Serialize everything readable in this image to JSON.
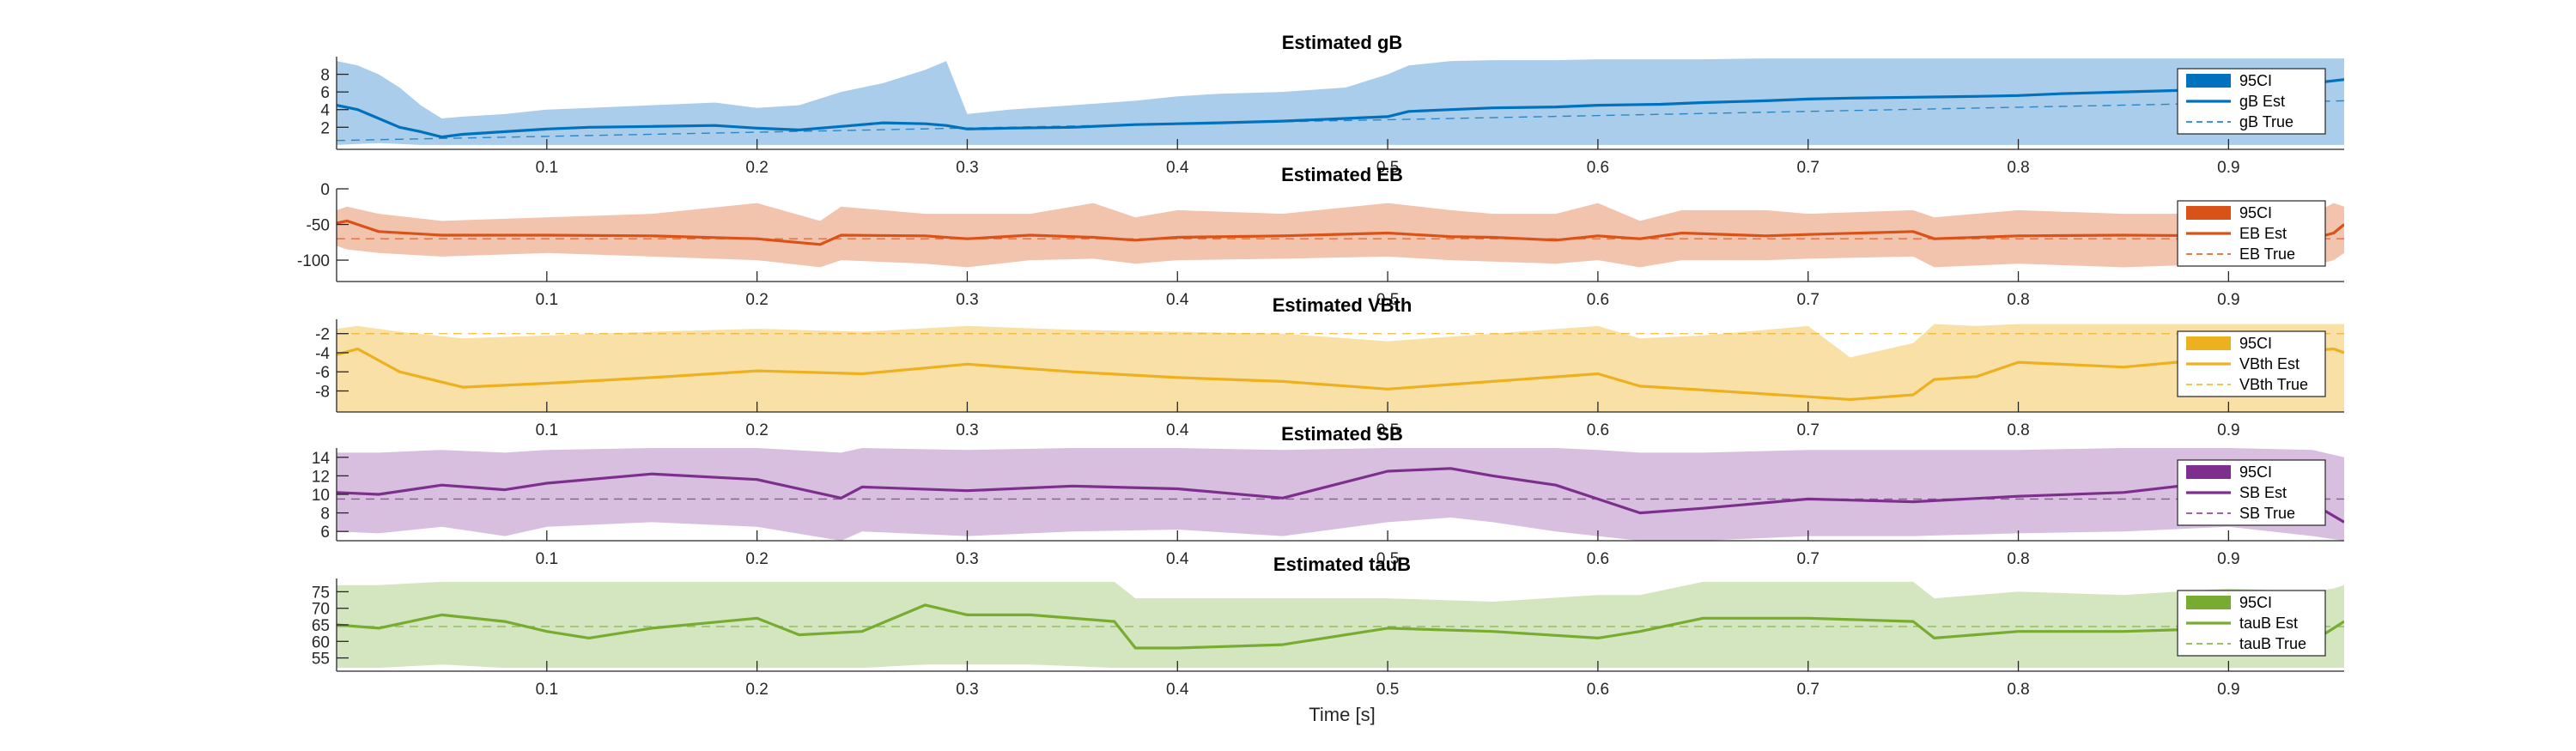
{
  "figure": {
    "xlabel": "Time [s]"
  },
  "chart_data": [
    {
      "type": "line",
      "title": "Estimated gB",
      "xlabel": "",
      "ylabel": "",
      "xlim": [
        0.0,
        0.955
      ],
      "ylim": [
        -0.5,
        10.0
      ],
      "xticks": [
        "0.1",
        "0.2",
        "0.3",
        "0.4",
        "0.5",
        "0.6",
        "0.7",
        "0.8",
        "0.9"
      ],
      "yticks": [
        "2",
        "4",
        "6",
        "8"
      ],
      "legend": [
        "95CI",
        "gB Est",
        "gB True"
      ],
      "legend_position": "right",
      "color": "#0072BD",
      "band_color": "#a9cdea",
      "true_value": [
        0.5,
        5.0
      ],
      "x": [
        0.0,
        0.01,
        0.02,
        0.03,
        0.04,
        0.05,
        0.06,
        0.08,
        0.1,
        0.12,
        0.15,
        0.18,
        0.2,
        0.22,
        0.24,
        0.26,
        0.28,
        0.29,
        0.3,
        0.32,
        0.35,
        0.38,
        0.4,
        0.42,
        0.45,
        0.48,
        0.5,
        0.51,
        0.53,
        0.55,
        0.58,
        0.6,
        0.63,
        0.65,
        0.68,
        0.7,
        0.72,
        0.75,
        0.78,
        0.8,
        0.82,
        0.85,
        0.88,
        0.9,
        0.92,
        0.94,
        0.955
      ],
      "est": [
        4.5,
        4.0,
        3.0,
        2.0,
        1.5,
        0.9,
        1.2,
        1.5,
        1.8,
        2.0,
        2.1,
        2.2,
        1.9,
        1.7,
        2.1,
        2.5,
        2.4,
        2.2,
        1.8,
        1.9,
        2.0,
        2.3,
        2.4,
        2.5,
        2.7,
        3.0,
        3.2,
        3.8,
        4.0,
        4.2,
        4.3,
        4.5,
        4.6,
        4.8,
        5.0,
        5.2,
        5.3,
        5.4,
        5.5,
        5.6,
        5.8,
        6.0,
        6.2,
        6.3,
        6.6,
        7.0,
        7.4
      ],
      "lower": [
        0.0,
        0.1,
        0.2,
        0.1,
        0.0,
        0.0,
        0.0,
        0.0,
        0.0,
        0.0,
        0.0,
        0.0,
        0.0,
        0.0,
        0.0,
        0.0,
        0.0,
        0.0,
        0.0,
        0.0,
        0.0,
        0.0,
        0.0,
        0.0,
        0.0,
        0.0,
        0.0,
        0.0,
        0.0,
        0.0,
        0.0,
        0.0,
        0.0,
        0.0,
        0.0,
        0.0,
        0.0,
        0.0,
        0.0,
        0.0,
        0.0,
        0.0,
        0.0,
        0.0,
        0.0,
        0.0,
        0.0
      ],
      "upper": [
        9.5,
        9.0,
        8.0,
        6.5,
        4.5,
        3.0,
        3.2,
        3.5,
        4.0,
        4.2,
        4.5,
        4.8,
        4.2,
        4.5,
        6.0,
        7.0,
        8.5,
        9.5,
        3.5,
        4.0,
        4.5,
        5.0,
        5.5,
        5.8,
        6.0,
        6.5,
        8.0,
        9.0,
        9.5,
        9.6,
        9.6,
        9.7,
        9.7,
        9.7,
        9.8,
        9.8,
        9.8,
        9.8,
        9.8,
        9.8,
        9.8,
        9.8,
        9.8,
        9.8,
        9.8,
        9.8,
        9.8
      ]
    },
    {
      "type": "line",
      "title": "Estimated EB",
      "xlabel": "",
      "ylabel": "",
      "xlim": [
        0.0,
        0.955
      ],
      "ylim": [
        -130,
        0
      ],
      "xticks": [
        "0.1",
        "0.2",
        "0.3",
        "0.4",
        "0.5",
        "0.6",
        "0.7",
        "0.8",
        "0.9"
      ],
      "yticks": [
        "-100",
        "-50",
        "0"
      ],
      "legend": [
        "95CI",
        "EB Est",
        "EB True"
      ],
      "legend_position": "right",
      "color": "#D95319",
      "band_color": "#f2c3ad",
      "true_value": [
        -70,
        -70
      ],
      "x": [
        0.0,
        0.005,
        0.02,
        0.05,
        0.1,
        0.15,
        0.2,
        0.23,
        0.24,
        0.28,
        0.3,
        0.33,
        0.36,
        0.38,
        0.4,
        0.45,
        0.5,
        0.53,
        0.55,
        0.58,
        0.6,
        0.62,
        0.64,
        0.68,
        0.7,
        0.75,
        0.76,
        0.8,
        0.85,
        0.9,
        0.94,
        0.95,
        0.955
      ],
      "est": [
        -48,
        -45,
        -60,
        -65,
        -65,
        -66,
        -70,
        -78,
        -65,
        -66,
        -70,
        -65,
        -68,
        -72,
        -68,
        -66,
        -62,
        -67,
        -68,
        -72,
        -66,
        -70,
        -62,
        -66,
        -64,
        -60,
        -70,
        -66,
        -65,
        -66,
        -70,
        -62,
        -50
      ],
      "lower": [
        -80,
        -85,
        -90,
        -95,
        -90,
        -95,
        -100,
        -110,
        -100,
        -105,
        -110,
        -100,
        -98,
        -105,
        -100,
        -98,
        -95,
        -100,
        -102,
        -105,
        -100,
        -110,
        -100,
        -100,
        -98,
        -95,
        -110,
        -105,
        -110,
        -105,
        -108,
        -100,
        -90
      ],
      "upper": [
        -30,
        -25,
        -35,
        -45,
        -40,
        -35,
        -20,
        -45,
        -25,
        -35,
        -35,
        -35,
        -20,
        -40,
        -30,
        -35,
        -20,
        -30,
        -35,
        -35,
        -20,
        -45,
        -30,
        -30,
        -35,
        -30,
        -40,
        -30,
        -35,
        -35,
        -35,
        -20,
        -25
      ]
    },
    {
      "type": "line",
      "title": "Estimated VBth",
      "xlabel": "",
      "ylabel": "",
      "xlim": [
        0.0,
        0.955
      ],
      "ylim": [
        -10.2,
        -0.5
      ],
      "xticks": [
        "0.1",
        "0.2",
        "0.3",
        "0.4",
        "0.5",
        "0.6",
        "0.7",
        "0.8",
        "0.9"
      ],
      "yticks": [
        "-8",
        "-6",
        "-4",
        "-2"
      ],
      "legend": [
        "95CI",
        "VBth Est",
        "VBth True"
      ],
      "legend_position": "right",
      "color": "#EDB120",
      "band_color": "#f8e0a7",
      "true_value": [
        -2.0,
        -2.0
      ],
      "x": [
        0.0,
        0.01,
        0.03,
        0.06,
        0.1,
        0.15,
        0.2,
        0.25,
        0.3,
        0.35,
        0.4,
        0.45,
        0.5,
        0.55,
        0.6,
        0.62,
        0.65,
        0.7,
        0.72,
        0.75,
        0.76,
        0.78,
        0.8,
        0.85,
        0.9,
        0.95,
        0.955
      ],
      "est": [
        -4.2,
        -3.6,
        -6.0,
        -7.6,
        -7.2,
        -6.6,
        -5.9,
        -6.2,
        -5.2,
        -6.0,
        -6.6,
        -7.0,
        -7.8,
        -7.0,
        -6.2,
        -7.5,
        -7.9,
        -8.6,
        -8.9,
        -8.4,
        -6.8,
        -6.5,
        -5.0,
        -5.5,
        -4.5,
        -3.6,
        -4.0
      ],
      "lower": [
        -10.2,
        -10.2,
        -10.2,
        -10.2,
        -10.2,
        -10.2,
        -10.2,
        -10.2,
        -10.2,
        -10.2,
        -10.2,
        -10.2,
        -10.2,
        -10.2,
        -10.2,
        -10.2,
        -10.2,
        -10.2,
        -10.2,
        -10.2,
        -10.2,
        -10.2,
        -10.2,
        -10.2,
        -10.2,
        -10.2,
        -10.2
      ],
      "upper": [
        -1.5,
        -1.2,
        -1.8,
        -2.5,
        -2.2,
        -1.8,
        -1.5,
        -1.8,
        -1.2,
        -1.6,
        -1.8,
        -2.0,
        -2.8,
        -2.0,
        -1.2,
        -2.5,
        -2.2,
        -1.2,
        -4.5,
        -3.0,
        -1.0,
        -1.2,
        -1.0,
        -1.0,
        -1.0,
        -1.0,
        -1.0
      ]
    },
    {
      "type": "line",
      "title": "Estimated SB",
      "xlabel": "",
      "ylabel": "",
      "xlim": [
        0.0,
        0.955
      ],
      "ylim": [
        5.0,
        15.0
      ],
      "xticks": [
        "0.1",
        "0.2",
        "0.3",
        "0.4",
        "0.5",
        "0.6",
        "0.7",
        "0.8",
        "0.9"
      ],
      "yticks": [
        "6",
        "8",
        "10",
        "12",
        "14"
      ],
      "legend": [
        "95CI",
        "SB Est",
        "SB True"
      ],
      "legend_position": "right",
      "color": "#7E2F8E",
      "band_color": "#d8bfe0",
      "true_value": [
        9.5,
        9.5
      ],
      "x": [
        0.0,
        0.02,
        0.05,
        0.08,
        0.1,
        0.15,
        0.2,
        0.24,
        0.25,
        0.3,
        0.35,
        0.4,
        0.45,
        0.5,
        0.53,
        0.55,
        0.58,
        0.6,
        0.62,
        0.65,
        0.7,
        0.75,
        0.8,
        0.85,
        0.9,
        0.94,
        0.955
      ],
      "est": [
        10.2,
        10.0,
        11.0,
        10.5,
        11.2,
        12.2,
        11.6,
        9.6,
        10.8,
        10.4,
        10.9,
        10.6,
        9.6,
        12.5,
        12.8,
        12.0,
        11.0,
        9.5,
        8.0,
        8.5,
        9.5,
        9.2,
        9.8,
        10.2,
        11.5,
        9.0,
        7.0
      ],
      "lower": [
        6.0,
        5.8,
        6.5,
        5.5,
        6.5,
        7.0,
        6.5,
        5.0,
        6.0,
        5.5,
        6.0,
        6.2,
        5.5,
        7.0,
        7.5,
        7.0,
        6.0,
        5.5,
        5.0,
        5.0,
        5.5,
        5.5,
        5.8,
        6.0,
        6.5,
        5.5,
        5.0
      ],
      "upper": [
        14.5,
        14.5,
        14.8,
        14.5,
        14.8,
        15.0,
        15.0,
        14.5,
        15.0,
        14.8,
        15.0,
        15.0,
        14.8,
        15.0,
        15.0,
        15.0,
        15.0,
        14.8,
        14.5,
        14.5,
        14.8,
        14.8,
        14.8,
        15.0,
        15.0,
        14.8,
        14.0
      ]
    },
    {
      "type": "line",
      "title": "Estimated tauB",
      "xlabel": "",
      "ylabel": "",
      "xlim": [
        0.0,
        0.955
      ],
      "ylim": [
        51,
        79
      ],
      "xticks": [
        "0.1",
        "0.2",
        "0.3",
        "0.4",
        "0.5",
        "0.6",
        "0.7",
        "0.8",
        "0.9"
      ],
      "yticks": [
        "55",
        "60",
        "65",
        "70",
        "75"
      ],
      "legend": [
        "95CI",
        "tauB Est",
        "tauB True"
      ],
      "legend_position": "right",
      "color": "#77AC30",
      "band_color": "#d3e6bf",
      "true_value": [
        64.5,
        64.5
      ],
      "x": [
        0.0,
        0.02,
        0.05,
        0.08,
        0.1,
        0.12,
        0.15,
        0.2,
        0.22,
        0.25,
        0.28,
        0.3,
        0.33,
        0.37,
        0.38,
        0.4,
        0.45,
        0.5,
        0.55,
        0.6,
        0.62,
        0.65,
        0.7,
        0.75,
        0.76,
        0.8,
        0.85,
        0.9,
        0.94,
        0.95,
        0.955
      ],
      "est": [
        65,
        64,
        68,
        66,
        63,
        61,
        64,
        67,
        62,
        63,
        71,
        68,
        68,
        66,
        58,
        58,
        59,
        64,
        63,
        61,
        63,
        67,
        67,
        66,
        61,
        63,
        63,
        64,
        60,
        64,
        66
      ],
      "lower": [
        52,
        52,
        53,
        52,
        52,
        52,
        52,
        52,
        52,
        52,
        53,
        53,
        53,
        52,
        52,
        52,
        52,
        52,
        52,
        52,
        52,
        52,
        52,
        52,
        52,
        52,
        52,
        52,
        52,
        52,
        52
      ],
      "upper": [
        77,
        77,
        78,
        78,
        78,
        78,
        78,
        78,
        78,
        78,
        78,
        78,
        78,
        78,
        73,
        73,
        73,
        73,
        72,
        74,
        74,
        78,
        78,
        78,
        73,
        75,
        74,
        76,
        75,
        76,
        77
      ]
    }
  ]
}
